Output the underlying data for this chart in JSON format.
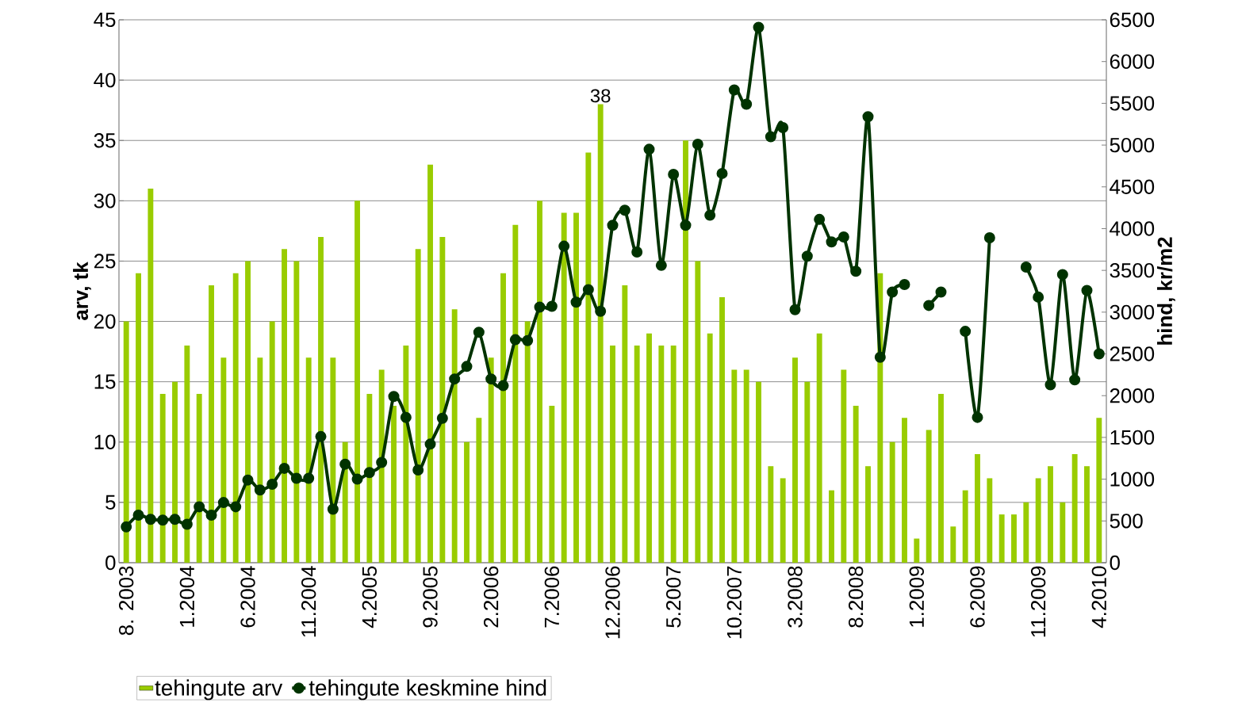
{
  "chart_data": {
    "type": "bar",
    "ylabel": "arv, tk",
    "y2label": "hind, kr/m2",
    "categories": [
      "8. 2003",
      null,
      null,
      null,
      null,
      "1.2004",
      null,
      null,
      null,
      null,
      "6.2004",
      null,
      null,
      null,
      null,
      "11.2004",
      null,
      null,
      null,
      null,
      "4.2005",
      null,
      null,
      null,
      null,
      "9.2005",
      null,
      null,
      null,
      null,
      "2.2006",
      null,
      null,
      null,
      null,
      "7.2006",
      null,
      null,
      null,
      null,
      "12.2006",
      null,
      null,
      null,
      null,
      "5.2007",
      null,
      null,
      null,
      null,
      "10.2007",
      null,
      null,
      null,
      null,
      "3.2008",
      null,
      null,
      null,
      null,
      "8.2008",
      null,
      null,
      null,
      null,
      "1.2009",
      null,
      null,
      null,
      null,
      "6.2009",
      null,
      null,
      null,
      null,
      "11.2009",
      null,
      null,
      null,
      null,
      "4.2010"
    ],
    "series": [
      {
        "name": "tehingute arv",
        "color": "#99cc00",
        "values": [
          20,
          24,
          31,
          14,
          15,
          18,
          14,
          23,
          17,
          24,
          25,
          17,
          20,
          26,
          25,
          17,
          27,
          17,
          10,
          30,
          14,
          16,
          13,
          18,
          26,
          33,
          27,
          21,
          10,
          12,
          17,
          24,
          28,
          20,
          30,
          13,
          29,
          29,
          34,
          38,
          18,
          23,
          18,
          19,
          18,
          18,
          35,
          25,
          19,
          22,
          16,
          16,
          15,
          8,
          7,
          17,
          15,
          19,
          6,
          16,
          13,
          8,
          24,
          10,
          12,
          2,
          11,
          14,
          3,
          6,
          9,
          7,
          4,
          4,
          5,
          7,
          8,
          5,
          9,
          8,
          12
        ],
        "value_labels": [
          null,
          null,
          null,
          null,
          null,
          null,
          null,
          null,
          null,
          null,
          null,
          null,
          null,
          null,
          null,
          null,
          null,
          null,
          null,
          null,
          null,
          null,
          null,
          null,
          null,
          null,
          null,
          null,
          null,
          null,
          null,
          null,
          null,
          null,
          null,
          null,
          null,
          null,
          null,
          "38",
          null,
          null,
          null,
          null,
          null,
          null,
          null,
          null,
          null,
          null,
          null,
          null,
          null,
          null,
          null,
          null,
          null,
          null,
          null,
          null,
          null,
          null,
          null,
          null,
          null,
          null,
          null,
          null,
          null,
          null,
          null,
          null,
          null,
          null,
          null,
          null,
          null,
          null,
          null,
          null,
          null
        ]
      },
      {
        "name": "tehingute keskmine hind",
        "type": "line",
        "axis": "y2",
        "color": "#003300",
        "values": [
          430,
          570,
          520,
          510,
          520,
          460,
          670,
          570,
          720,
          670,
          990,
          870,
          940,
          1130,
          1010,
          1010,
          1510,
          640,
          1180,
          1000,
          1080,
          1200,
          1990,
          1740,
          1110,
          1420,
          1730,
          2200,
          2350,
          2760,
          2200,
          2120,
          2670,
          2660,
          3060,
          3070,
          3790,
          3120,
          3270,
          3010,
          4040,
          4220,
          3720,
          4950,
          3560,
          4650,
          4040,
          5010,
          4160,
          4660,
          5660,
          5490,
          6410,
          5100,
          5210,
          3030,
          3670,
          4110,
          3840,
          3900,
          3490,
          5340,
          2460,
          3240,
          3330,
          null,
          3080,
          3240,
          null,
          2770,
          1740,
          3890,
          null,
          null,
          3540,
          3180,
          2130,
          3450,
          2190,
          3260,
          2500
        ]
      }
    ],
    "ylim": [
      0,
      45
    ],
    "yticks": [
      0,
      5,
      10,
      15,
      20,
      25,
      30,
      35,
      40,
      45
    ],
    "y2lim": [
      0,
      6500
    ],
    "y2ticks": [
      0,
      500,
      1000,
      1500,
      2000,
      2500,
      3000,
      3500,
      4000,
      4500,
      5000,
      5500,
      6000,
      6500
    ],
    "grid": "y",
    "legend": "bottom",
    "marker": "circle"
  }
}
